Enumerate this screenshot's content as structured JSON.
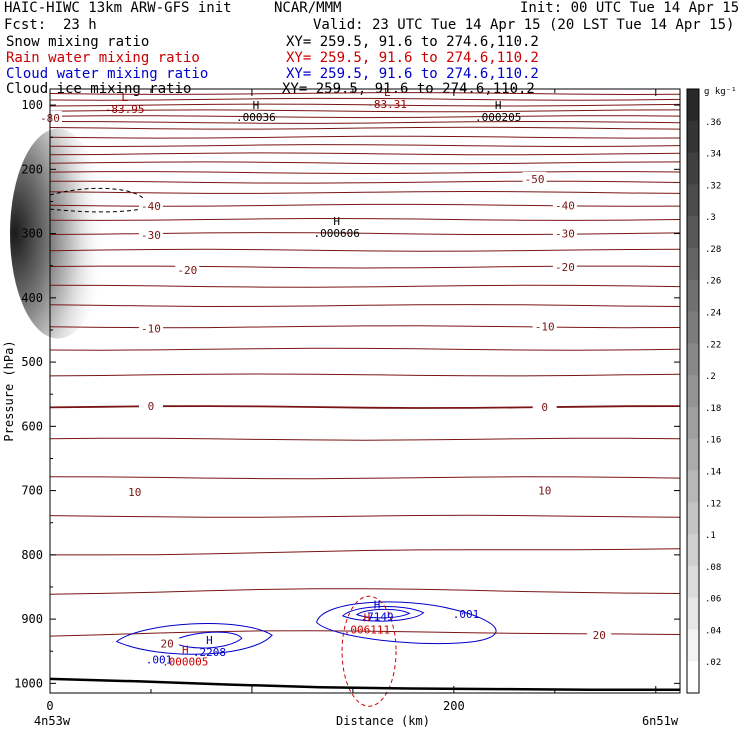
{
  "header": {
    "model": "HAIC-HIWC 13km ARW-GFS init",
    "org": "NCAR/MMM",
    "init": "Init: 00 UTC Tue 14 Apr 15",
    "fcst_label": "Fcst:",
    "fcst_value": "23 h",
    "valid": "Valid: 23 UTC Tue 14 Apr 15 (20 LST Tue 14 Apr 15)"
  },
  "fields": [
    {
      "name": "Snow mixing ratio",
      "xy": "XY= 259.5, 91.6 to 274.6,110.2",
      "color": "#000000"
    },
    {
      "name": "Rain water mixing ratio",
      "xy": "XY= 259.5, 91.6 to 274.6,110.2",
      "color": "#cc0000"
    },
    {
      "name": "Cloud water mixing ratio",
      "xy": "XY= 259.5, 91.6 to 274.6,110.2",
      "color": "#0000cc"
    },
    {
      "name": "Cloud ice mixing ratio",
      "xy": "XY= 259.5, 91.6 to 274.6,110.2",
      "color": "#000000"
    }
  ],
  "colorbar": {
    "unit": "g kg⁻¹",
    "ticks": [
      ".36",
      ".34",
      ".32",
      ".3",
      ".28",
      ".26",
      ".24",
      ".22",
      ".2",
      ".18",
      ".16",
      ".14",
      ".12",
      ".1",
      ".08",
      ".06",
      ".04",
      ".02"
    ],
    "range": [
      0,
      0.38
    ]
  },
  "chart_data": {
    "type": "cross-section contour",
    "xlabel": "Distance (km)",
    "ylabel": "Pressure (hPa)",
    "x_range": [
      0,
      312
    ],
    "x_ticks": [
      0,
      200
    ],
    "x_tick_labels": [
      "0",
      "200"
    ],
    "y_range": [
      1015,
      75
    ],
    "y_ticks": [
      100,
      200,
      300,
      400,
      500,
      600,
      700,
      800,
      900,
      1000
    ],
    "y_tick_labels": [
      "100",
      "200",
      "300",
      "400",
      "500",
      "600",
      "700",
      "800",
      "900",
      "1000"
    ],
    "x_end_labels": [
      "4n53w",
      "6n51w"
    ],
    "temperature_isotherms": [
      {
        "label": "-80",
        "x": 0,
        "p": 120
      },
      {
        "label": "-50",
        "x": 240,
        "p": 215
      },
      {
        "label": "-40",
        "x": 50,
        "p": 257
      },
      {
        "label": "-40",
        "x": 255,
        "p": 256
      },
      {
        "label": "-30",
        "x": 50,
        "p": 302
      },
      {
        "label": "-30",
        "x": 255,
        "p": 300
      },
      {
        "label": "-20",
        "x": 68,
        "p": 357
      },
      {
        "label": "-20",
        "x": 255,
        "p": 352
      },
      {
        "label": "-10",
        "x": 50,
        "p": 448
      },
      {
        "label": "-10",
        "x": 245,
        "p": 445
      },
      {
        "label": "0",
        "x": 50,
        "p": 568
      },
      {
        "label": "0",
        "x": 245,
        "p": 570
      },
      {
        "label": "10",
        "x": 42,
        "p": 702
      },
      {
        "label": "10",
        "x": 245,
        "p": 700
      },
      {
        "label": "20",
        "x": 58,
        "p": 938
      },
      {
        "label": "20",
        "x": 272,
        "p": 925
      }
    ],
    "extrema_labels": [
      {
        "kind": "L",
        "value": "-83.95",
        "x": 35,
        "p": 100,
        "color": "#990000"
      },
      {
        "kind": "L",
        "value": "-83.31",
        "x": 165,
        "p": 92,
        "color": "#990000"
      },
      {
        "kind": "H",
        "value": ".00036",
        "x": 100,
        "p": 112,
        "color": "#000000"
      },
      {
        "kind": "H",
        "value": ".000205",
        "x": 220,
        "p": 112,
        "color": "#000000"
      },
      {
        "kind": "H",
        "value": ".000606",
        "x": 140,
        "p": 293,
        "color": "#000000"
      },
      {
        "kind": "H",
        "value": ".2208",
        "x": 77,
        "p": 945,
        "color": "#0000cc"
      },
      {
        "kind": "H",
        "value": ".000005",
        "x": 65,
        "p": 960,
        "color": "#cc0000"
      },
      {
        "kind": "H",
        "value": ".7149",
        "x": 160,
        "p": 890,
        "color": "#0000cc"
      },
      {
        "kind": "H",
        "value": ".006111",
        "x": 155,
        "p": 910,
        "color": "#cc0000"
      }
    ],
    "cloud_water_contour_labels": [
      {
        "value": ".001",
        "x": 54,
        "p": 963
      },
      {
        "value": ".001",
        "x": 206,
        "p": 892
      }
    ],
    "ground_pressure_hpa": [
      993,
      997,
      1002,
      1006,
      1008,
      1009,
      1010,
      1010
    ]
  }
}
